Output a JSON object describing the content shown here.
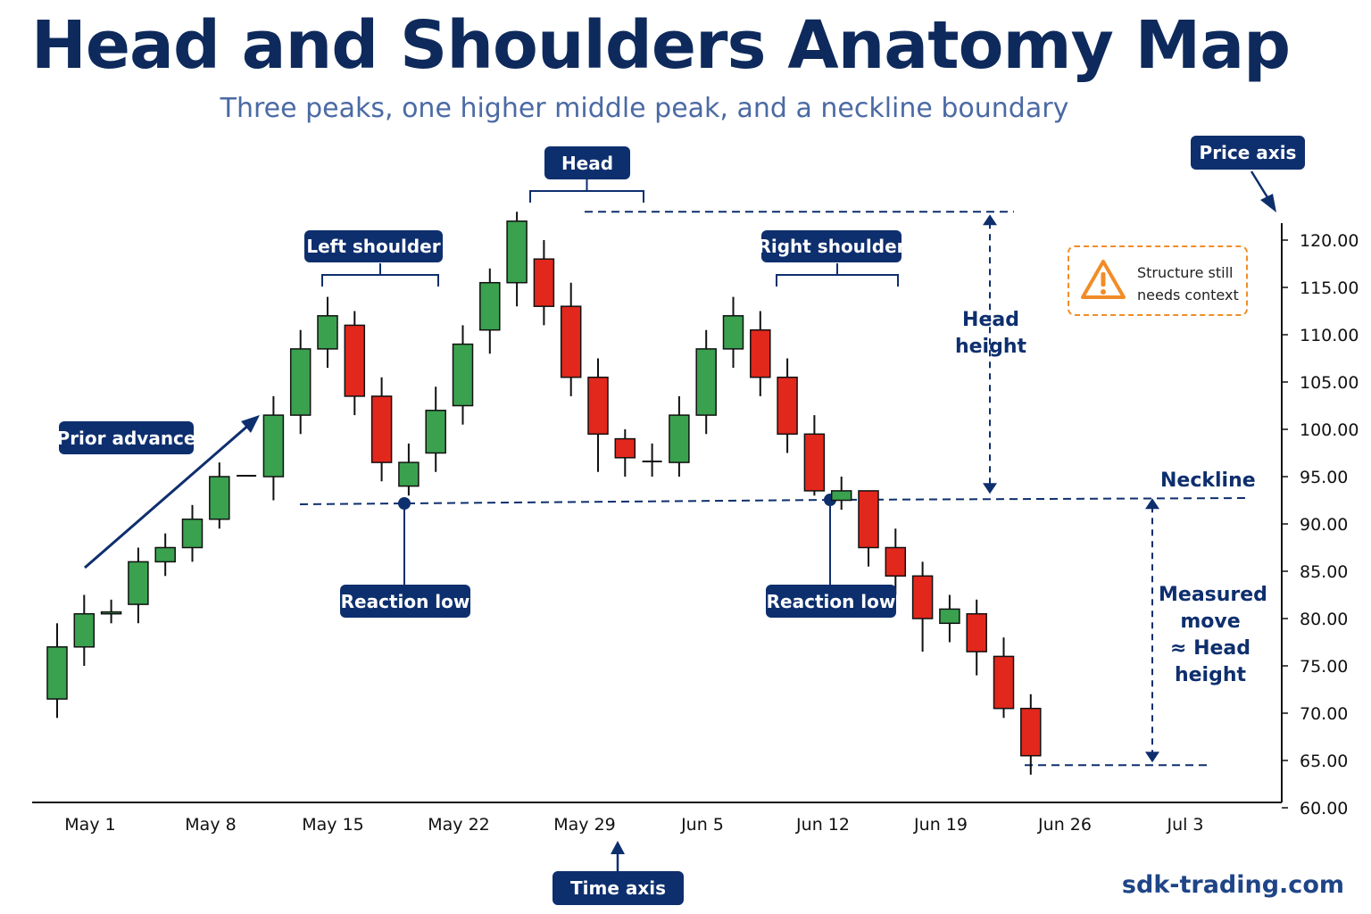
{
  "title": "Head and Shoulders Anatomy Map",
  "subtitle": "Three peaks, one higher middle peak, and a neckline boundary",
  "labels": {
    "head": "Head",
    "left_shoulder": "Left shoulder",
    "right_shoulder": "Right shoulder",
    "prior_advance": "Prior advance",
    "reaction_low_1": "Reaction low",
    "reaction_low_2": "Reaction low",
    "price_axis": "Price axis",
    "time_axis": "Time axis",
    "neckline": "Neckline",
    "head_height_line1": "Head",
    "head_height_line2": "height",
    "measured_move_lines": [
      "Measured",
      "move",
      "≈ Head",
      "height"
    ],
    "warning_line1": "Structure still",
    "warning_line2": "needs context",
    "watermark": "sdk-trading.com"
  },
  "icons": {
    "warning": "warning-triangle-icon"
  },
  "colors": {
    "bull": "#3aa14f",
    "bear": "#e2271c",
    "navy": "#0e2f6e",
    "warning": "#f28c28"
  },
  "chart_data": {
    "type": "candlestick",
    "x_tick_labels": [
      "May 1",
      "May 8",
      "May 15",
      "May 22",
      "May 29",
      "Jun 5",
      "Jun 12",
      "Jun 19",
      "Jun 26",
      "Jul 3"
    ],
    "y_tick_labels": [
      "120.00",
      "115.00",
      "110.00",
      "105.00",
      "100.00",
      "95.00",
      "90.00",
      "85.00",
      "80.00",
      "75.00",
      "70.00",
      "65.00",
      "60.00"
    ],
    "ylim": [
      60,
      120
    ],
    "neckline": 93.0,
    "head_high": 123.0,
    "measured_target": 64.5,
    "candles": [
      {
        "o": 71.5,
        "h": 79.5,
        "l": 69.5,
        "c": 77.0
      },
      {
        "o": 77.0,
        "h": 82.5,
        "l": 75.0,
        "c": 80.5
      },
      {
        "o": 80.5,
        "h": 82.0,
        "l": 79.5,
        "c": 80.7
      },
      {
        "o": 81.5,
        "h": 87.5,
        "l": 79.5,
        "c": 86.0
      },
      {
        "o": 86.0,
        "h": 89.0,
        "l": 84.5,
        "c": 87.5
      },
      {
        "o": 87.5,
        "h": 92.0,
        "l": 86.0,
        "c": 90.5
      },
      {
        "o": 90.5,
        "h": 96.5,
        "l": 89.5,
        "c": 95.0
      },
      {
        "o": 95.0,
        "h": 95.0,
        "l": 95.0,
        "c": 95.1
      },
      {
        "o": 95.0,
        "h": 103.5,
        "l": 92.5,
        "c": 101.5
      },
      {
        "o": 101.5,
        "h": 110.5,
        "l": 99.5,
        "c": 108.5
      },
      {
        "o": 108.5,
        "h": 114.0,
        "l": 106.5,
        "c": 112.0
      },
      {
        "o": 111.0,
        "h": 112.5,
        "l": 101.5,
        "c": 103.5
      },
      {
        "o": 103.5,
        "h": 105.5,
        "l": 94.5,
        "c": 96.5
      },
      {
        "o": 94.0,
        "h": 98.5,
        "l": 93.0,
        "c": 96.5
      },
      {
        "o": 97.5,
        "h": 104.5,
        "l": 95.5,
        "c": 102.0
      },
      {
        "o": 102.5,
        "h": 111.0,
        "l": 100.5,
        "c": 109.0
      },
      {
        "o": 110.5,
        "h": 117.0,
        "l": 108.0,
        "c": 115.5
      },
      {
        "o": 115.5,
        "h": 123.0,
        "l": 113.0,
        "c": 122.0
      },
      {
        "o": 118.0,
        "h": 120.0,
        "l": 111.0,
        "c": 113.0
      },
      {
        "o": 113.0,
        "h": 115.5,
        "l": 103.5,
        "c": 105.5
      },
      {
        "o": 105.5,
        "h": 107.5,
        "l": 95.5,
        "c": 99.5
      },
      {
        "o": 99.0,
        "h": 100.0,
        "l": 95.0,
        "c": 97.0
      },
      {
        "o": 96.5,
        "h": 98.5,
        "l": 95.0,
        "c": 96.6
      },
      {
        "o": 96.5,
        "h": 103.5,
        "l": 95.0,
        "c": 101.5
      },
      {
        "o": 101.5,
        "h": 110.5,
        "l": 99.5,
        "c": 108.5
      },
      {
        "o": 108.5,
        "h": 114.0,
        "l": 106.5,
        "c": 112.0
      },
      {
        "o": 110.5,
        "h": 112.5,
        "l": 103.5,
        "c": 105.5
      },
      {
        "o": 105.5,
        "h": 107.5,
        "l": 97.5,
        "c": 99.5
      },
      {
        "o": 99.5,
        "h": 101.5,
        "l": 93.0,
        "c": 93.5
      },
      {
        "o": 92.5,
        "h": 95.0,
        "l": 91.5,
        "c": 93.5
      },
      {
        "o": 93.5,
        "h": 93.5,
        "l": 85.5,
        "c": 87.5
      },
      {
        "o": 87.5,
        "h": 89.5,
        "l": 82.5,
        "c": 84.5
      },
      {
        "o": 84.5,
        "h": 86.0,
        "l": 76.5,
        "c": 80.0
      },
      {
        "o": 79.5,
        "h": 82.5,
        "l": 77.5,
        "c": 81.0
      },
      {
        "o": 80.5,
        "h": 82.0,
        "l": 74.0,
        "c": 76.5
      },
      {
        "o": 76.0,
        "h": 78.0,
        "l": 69.5,
        "c": 70.5
      },
      {
        "o": 70.5,
        "h": 72.0,
        "l": 63.5,
        "c": 65.5
      }
    ]
  }
}
